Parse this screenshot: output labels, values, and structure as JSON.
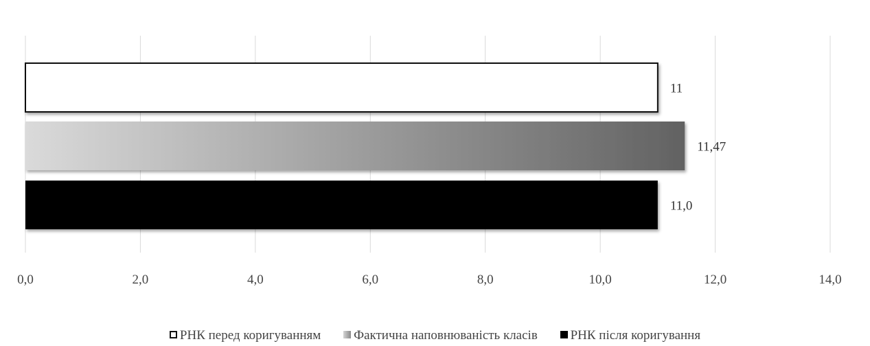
{
  "chart_data": {
    "type": "bar",
    "orientation": "horizontal",
    "xlim": [
      0,
      14
    ],
    "x_ticks": [
      "0,0",
      "2,0",
      "4,0",
      "6,0",
      "8,0",
      "10,0",
      "12,0",
      "14,0"
    ],
    "grid": "vertical",
    "legend_position": "bottom",
    "series": [
      {
        "name": "РНК перед коригуванням",
        "value": 11,
        "label": "11",
        "fill": "#ffffff",
        "stroke": "#111111"
      },
      {
        "name": "Фактична наповнюваність класів",
        "value": 11.47,
        "label": "11,47",
        "fill": "gradient-light-to-dark-gray",
        "stroke": "none"
      },
      {
        "name": "РНК після коригування",
        "value": 11.0,
        "label": "11,0",
        "fill": "#000000",
        "stroke": "none"
      }
    ]
  }
}
